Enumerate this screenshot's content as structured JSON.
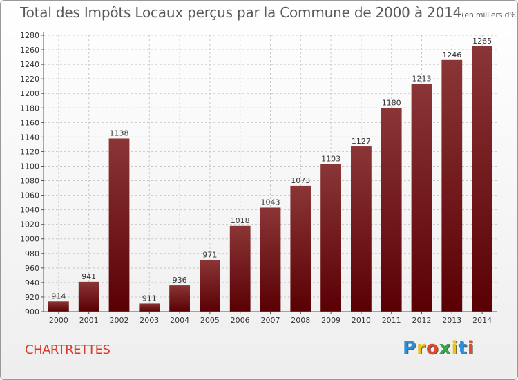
{
  "title": "Total des Impôts Locaux perçus par la Commune de 2000 à 2014",
  "unit": "(en milliers d'€)",
  "commune": "CHARTRETTES",
  "logo": {
    "text": "Proxiti",
    "colors": [
      "#2a8fd8",
      "#e8c21f",
      "#e24a2a",
      "#3aa64a",
      "#e8c21f",
      "#2a8fd8",
      "#e24a2a"
    ]
  },
  "colors": {
    "bar_top": "#8a3536",
    "bar_bottom": "#5a0004",
    "commune": "#d93a2b"
  },
  "chart_data": {
    "type": "bar",
    "categories": [
      "2000",
      "2001",
      "2002",
      "2003",
      "2004",
      "2005",
      "2006",
      "2007",
      "2008",
      "2009",
      "2010",
      "2011",
      "2012",
      "2013",
      "2014"
    ],
    "values": [
      914,
      941,
      1138,
      911,
      936,
      971,
      1018,
      1043,
      1073,
      1103,
      1127,
      1180,
      1213,
      1246,
      1265
    ],
    "ylim": [
      900,
      1280
    ],
    "yticks": [
      900,
      920,
      940,
      960,
      980,
      1000,
      1020,
      1040,
      1060,
      1080,
      1100,
      1120,
      1140,
      1160,
      1180,
      1200,
      1220,
      1240,
      1260,
      1280
    ],
    "grid": true
  }
}
